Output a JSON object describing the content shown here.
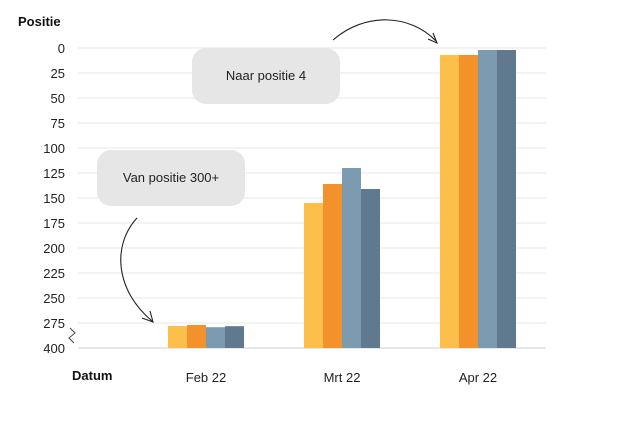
{
  "chart_data": {
    "type": "bar",
    "y_title": "Positie",
    "x_title": "Datum",
    "categories": [
      "Feb 22",
      "Mrt 22",
      "Apr 22"
    ],
    "y_ticks": [
      "0",
      "25",
      "50",
      "75",
      "100",
      "125",
      "150",
      "175",
      "200",
      "225",
      "250",
      "275",
      "400"
    ],
    "y_inverted": true,
    "y_axis_break": "between 275 and 400",
    "grid": true,
    "series": [
      {
        "color": "#fbbf4a",
        "values": [
          290,
          155,
          7
        ]
      },
      {
        "color": "#f3912b",
        "values": [
          285,
          136,
          7
        ]
      },
      {
        "color": "#7c9bb0",
        "values": [
          296,
          120,
          2
        ]
      },
      {
        "color": "#60798f",
        "values": [
          291,
          141,
          2
        ]
      }
    ],
    "annotations": [
      {
        "text": "Naar positie 4"
      },
      {
        "text": "Van positie 300+"
      }
    ]
  }
}
